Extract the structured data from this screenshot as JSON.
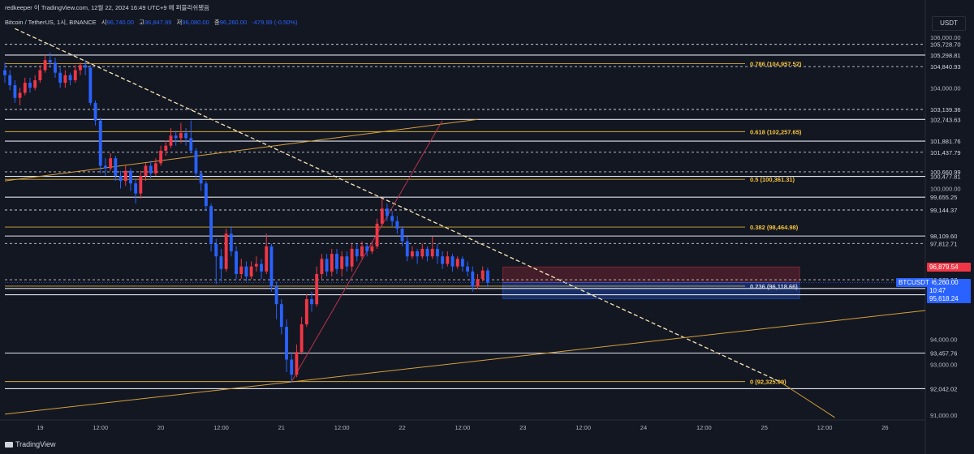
{
  "header": {
    "publisher": "redkeeper 이 TradingView.com, 12월 22, 2024 16:49 UTC+9 에 퍼블리쉬됐음",
    "symbol": "Bitcoin / TetherUS, 1시, BINANCE",
    "o_label": "시",
    "o_value": "96,740.00",
    "h_label": "고",
    "h_value": "96,847.99",
    "l_label": "저",
    "l_value": "96,080.00",
    "c_label": "종",
    "c_value": "96,260.00",
    "change": "-479.99 (-0.50%)"
  },
  "currency_badge": "USDT",
  "footer_logo": "TradingView",
  "colors": {
    "background": "#131722",
    "up": "#f23645",
    "down": "#2962ff",
    "fib": "#f5c33b",
    "trend": "#d5a03a",
    "red_line": "#b8324c",
    "text": "#d1d4dc",
    "axis_text": "#b2b5be"
  },
  "chart_data": {
    "type": "candlestick",
    "symbol": "BTCUSDT",
    "timeframe": "1시",
    "y_range": [
      90800,
      106200
    ],
    "y_ticks": [
      106000,
      104000,
      100000,
      94000,
      93000,
      91000
    ],
    "y_tick_labels": [
      "106,000.00",
      "104,000.00",
      "100,000.00",
      "94,000.00",
      "93,000.00",
      "91,000.00"
    ],
    "x_labels": [
      "19",
      "12:00",
      "20",
      "12:00",
      "21",
      "12:00",
      "22",
      "12:00",
      "23",
      "12:00",
      "24",
      "12:00",
      "25",
      "12:00",
      "26"
    ],
    "x_label_hours": [
      0,
      12,
      24,
      36,
      48,
      60,
      72,
      84,
      96,
      108,
      120,
      132,
      144,
      156,
      168
    ],
    "x_range_hours": [
      -7,
      176
    ],
    "horizontal_levels": [
      {
        "price": 105728.7,
        "label": "105,728.70",
        "style": "dashed"
      },
      {
        "price": 105298.81,
        "label": "105,298.81",
        "style": "solid"
      },
      {
        "price": 104840.93,
        "label": "104,840.93",
        "style": "dashed"
      },
      {
        "price": 103139.36,
        "label": "103,139.36",
        "style": "dashed"
      },
      {
        "price": 102743.63,
        "label": "102,743.63",
        "style": "solid"
      },
      {
        "price": 101881.76,
        "label": "101,881.76",
        "style": "solid"
      },
      {
        "price": 101437.79,
        "label": "101,437.79",
        "style": "dashed"
      },
      {
        "price": 100660.99,
        "label": "100,660.99",
        "style": "dashed"
      },
      {
        "price": 100477.81,
        "label": "100,477.81",
        "style": "solid"
      },
      {
        "price": 99655.25,
        "label": "99,655.25",
        "style": "solid"
      },
      {
        "price": 99144.37,
        "label": "99,144.37",
        "style": "dashed"
      },
      {
        "price": 98109.6,
        "label": "98,109.60",
        "style": "solid"
      },
      {
        "price": 97812.71,
        "label": "97,812.71",
        "style": "dashed"
      },
      {
        "price": 96370.07,
        "label": "96,370.07",
        "style": "dashed"
      },
      {
        "price": 96025.11,
        "label": "96,025.11",
        "style": "solid"
      },
      {
        "price": 95776.81,
        "label": "95,776.81",
        "style": "solid"
      },
      {
        "price": 93457.76,
        "label": "93,457.76",
        "style": "solid"
      },
      {
        "price": 92042.02,
        "label": "92,042.02",
        "style": "solid"
      }
    ],
    "fib_levels": [
      {
        "ratio": "0.786",
        "price": 104957.52,
        "label": "0.786 (104,957.52)"
      },
      {
        "ratio": "0.618",
        "price": 102257.65,
        "label": "0.618 (102,257.65)"
      },
      {
        "ratio": "0.5",
        "price": 100361.31,
        "label": "0.5 (100,361.31)"
      },
      {
        "ratio": "0.382",
        "price": 98464.98,
        "label": "0.382 (98,464.98)"
      },
      {
        "ratio": "0.236",
        "price": 96118.66,
        "label": "0.236 (96,118.66)"
      },
      {
        "ratio": "0",
        "price": 92325.99,
        "label": "0 (92,325.99)"
      }
    ],
    "price_tags": [
      {
        "price": 96879.54,
        "label": "96,879.54",
        "bg": "#f23645",
        "fg": "#ffffff"
      },
      {
        "price": 96260.0,
        "label": "96,260.00",
        "bg": "#2962ff",
        "fg": "#ffffff",
        "sub": "10:47"
      },
      {
        "price": 95618.24,
        "label": "95,618.24",
        "bg": "#2962ff",
        "fg": "#ffffff"
      }
    ],
    "ticker_tag": "BTCUSDT",
    "last_price": 96260.0,
    "position_box": {
      "t_start": 92,
      "t_end": 151,
      "top": 96879.54,
      "mid": 96260.0,
      "bottom": 95618.24
    },
    "trendlines": [
      {
        "name": "descending",
        "t1": -5,
        "p1": 106350,
        "t2": 147,
        "p2": 92325.99,
        "style": "dashed-bright"
      },
      {
        "name": "descending-extension",
        "t1": 147,
        "p1": 92325.99,
        "t2": 158,
        "p2": 90900,
        "style": "solid"
      },
      {
        "name": "ascending-support",
        "t1": -7,
        "p1": 91030,
        "t2": 176,
        "p2": 95150,
        "style": "solid"
      },
      {
        "name": "ascending-upper",
        "t1": -7,
        "p1": 100300,
        "t2": 87,
        "p2": 102743.63,
        "style": "solid"
      },
      {
        "name": "red-rally",
        "t1": 50,
        "p1": 92325.99,
        "t2": 80,
        "p2": 102700,
        "style": "solid-red"
      }
    ],
    "candles": [
      [
        -7,
        104700,
        104500,
        105000,
        104200
      ],
      [
        -6,
        104500,
        104100,
        104700,
        103900
      ],
      [
        -5,
        104100,
        103600,
        104300,
        103400
      ],
      [
        -4,
        103600,
        103800,
        104000,
        103300
      ],
      [
        -3,
        103800,
        104200,
        104400,
        103700
      ],
      [
        -2,
        104200,
        104000,
        104400,
        103800
      ],
      [
        -1,
        104000,
        104300,
        104500,
        103900
      ],
      [
        0,
        104300,
        104700,
        104900,
        104200
      ],
      [
        1,
        104700,
        105100,
        105300,
        104600
      ],
      [
        2,
        105100,
        105000,
        105400,
        104800
      ],
      [
        3,
        105000,
        104600,
        105200,
        104400
      ],
      [
        4,
        104600,
        104200,
        104800,
        104000
      ],
      [
        5,
        104200,
        104500,
        104700,
        104000
      ],
      [
        6,
        104500,
        104300,
        104600,
        104100
      ],
      [
        7,
        104300,
        104700,
        104900,
        104200
      ],
      [
        8,
        104700,
        104900,
        105000,
        104500
      ],
      [
        9,
        104900,
        104800,
        105100,
        104500
      ],
      [
        10,
        104800,
        103400,
        104900,
        103300
      ],
      [
        11,
        103400,
        102700,
        103500,
        102500
      ],
      [
        12,
        102700,
        100900,
        102800,
        100600
      ],
      [
        13,
        100900,
        100800,
        101200,
        100500
      ],
      [
        14,
        100800,
        101200,
        101400,
        100700
      ],
      [
        15,
        101200,
        100500,
        101300,
        100300
      ],
      [
        16,
        100500,
        100300,
        100700,
        100000
      ],
      [
        17,
        100300,
        100700,
        100900,
        100100
      ],
      [
        18,
        100700,
        100200,
        100800,
        99900
      ],
      [
        19,
        100200,
        99800,
        100400,
        99400
      ],
      [
        20,
        99800,
        100500,
        100700,
        99600
      ],
      [
        21,
        100500,
        100900,
        101000,
        100300
      ],
      [
        22,
        100900,
        100600,
        101100,
        100400
      ],
      [
        23,
        100600,
        101000,
        101200,
        100500
      ],
      [
        24,
        101000,
        101500,
        101700,
        100900
      ],
      [
        25,
        101500,
        101700,
        101900,
        101300
      ],
      [
        26,
        101700,
        102100,
        102400,
        101600
      ],
      [
        27,
        102100,
        102000,
        102300,
        101700
      ],
      [
        28,
        102000,
        102200,
        102600,
        101800
      ],
      [
        29,
        102200,
        102000,
        102400,
        101700
      ],
      [
        30,
        102000,
        101500,
        102700,
        101400
      ],
      [
        31,
        101500,
        100600,
        101600,
        100400
      ],
      [
        32,
        100600,
        100200,
        100700,
        99900
      ],
      [
        33,
        100200,
        99300,
        100300,
        99100
      ],
      [
        34,
        99300,
        97800,
        99400,
        97500
      ],
      [
        35,
        97800,
        97300,
        98000,
        96200
      ],
      [
        36,
        97300,
        96800,
        97600,
        96300
      ],
      [
        37,
        96800,
        98200,
        98400,
        96700
      ],
      [
        38,
        98200,
        97500,
        98500,
        97300
      ],
      [
        39,
        97500,
        96600,
        97700,
        96400
      ],
      [
        40,
        96600,
        96900,
        97200,
        96400
      ],
      [
        41,
        96900,
        96500,
        97100,
        96300
      ],
      [
        42,
        96500,
        96900,
        97100,
        96400
      ],
      [
        43,
        96900,
        97000,
        97300,
        96700
      ],
      [
        44,
        97000,
        96700,
        97200,
        96400
      ],
      [
        45,
        96700,
        97700,
        98200,
        96600
      ],
      [
        46,
        97700,
        96100,
        97800,
        95900
      ],
      [
        47,
        96100,
        95400,
        96300,
        94800
      ],
      [
        48,
        95400,
        94500,
        95600,
        94200
      ],
      [
        49,
        94500,
        93200,
        94800,
        92700
      ],
      [
        50,
        93200,
        92600,
        93500,
        92300
      ],
      [
        51,
        92600,
        93500,
        93800,
        92500
      ],
      [
        52,
        93500,
        94600,
        94900,
        93400
      ],
      [
        53,
        94600,
        95600,
        95800,
        94500
      ],
      [
        54,
        95600,
        95400,
        95900,
        95100
      ],
      [
        55,
        95400,
        96600,
        96900,
        95300
      ],
      [
        56,
        96600,
        97200,
        97400,
        96400
      ],
      [
        57,
        97200,
        96700,
        97400,
        96500
      ],
      [
        58,
        96700,
        97400,
        97600,
        96500
      ],
      [
        59,
        97400,
        96800,
        97600,
        96600
      ],
      [
        60,
        96800,
        97300,
        97500,
        96500
      ],
      [
        61,
        97300,
        96900,
        97500,
        96700
      ],
      [
        62,
        96900,
        97600,
        97800,
        96700
      ],
      [
        63,
        97600,
        97300,
        97800,
        97100
      ],
      [
        64,
        97300,
        97700,
        97900,
        97200
      ],
      [
        65,
        97700,
        97500,
        97800,
        97300
      ],
      [
        66,
        97500,
        97700,
        97900,
        97400
      ],
      [
        67,
        97700,
        98600,
        98800,
        97600
      ],
      [
        68,
        98600,
        99200,
        99600,
        98500
      ],
      [
        69,
        99200,
        98900,
        99400,
        98700
      ],
      [
        70,
        98900,
        98700,
        99100,
        98500
      ],
      [
        71,
        98700,
        98400,
        98900,
        98200
      ],
      [
        72,
        98400,
        97900,
        98500,
        97700
      ],
      [
        73,
        97900,
        97300,
        98100,
        97100
      ],
      [
        74,
        97300,
        97500,
        97700,
        97200
      ],
      [
        75,
        97500,
        97300,
        97600,
        97000
      ],
      [
        76,
        97300,
        97600,
        97800,
        97200
      ],
      [
        77,
        97600,
        97300,
        97700,
        97100
      ],
      [
        78,
        97300,
        97600,
        98100,
        97200
      ],
      [
        79,
        97600,
        97300,
        97800,
        97000
      ],
      [
        80,
        97300,
        97000,
        97500,
        96800
      ],
      [
        81,
        97000,
        97300,
        97500,
        96900
      ],
      [
        82,
        97300,
        96900,
        97400,
        96700
      ],
      [
        83,
        96900,
        97200,
        97300,
        96800
      ],
      [
        84,
        97200,
        96900,
        97300,
        96700
      ],
      [
        85,
        96900,
        96700,
        97100,
        96500
      ],
      [
        86,
        96700,
        96100,
        96900,
        95900
      ],
      [
        87,
        96100,
        96400,
        96600,
        96000
      ],
      [
        88,
        96400,
        96740,
        96900,
        96300
      ],
      [
        89,
        96740,
        96260,
        96848,
        96080
      ]
    ]
  }
}
